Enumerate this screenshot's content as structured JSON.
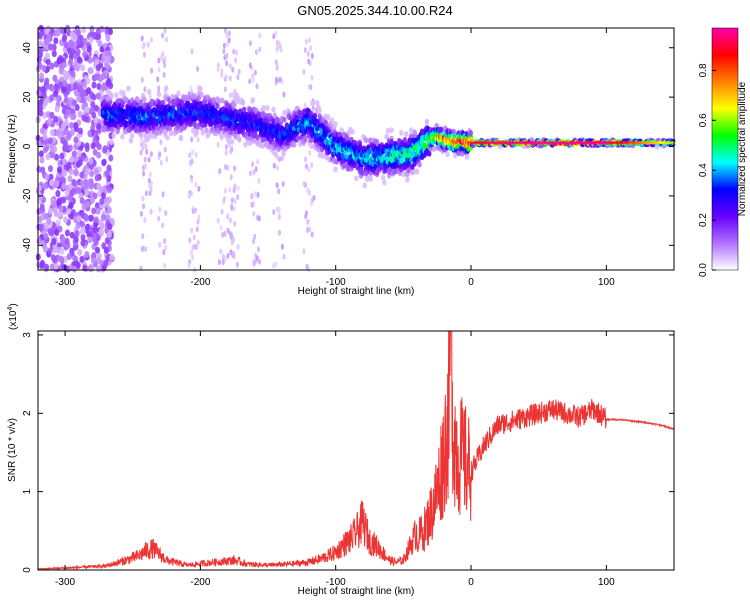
{
  "chart_data": [
    {
      "type": "heatmap",
      "title": "GN05.2025.344.10.00.R24",
      "xlabel": "Height of straight line (km)",
      "ylabel": "Frequency (Hz)",
      "xlim": [
        -320,
        150
      ],
      "ylim": [
        -50,
        48
      ],
      "xticks": [
        -300,
        -200,
        -100,
        0,
        100
      ],
      "xtick_labels": [
        "-300",
        "-200",
        "-100",
        "0",
        "100"
      ],
      "yticks": [
        -40,
        -20,
        0,
        20,
        40
      ],
      "ytick_labels": [
        "-40",
        "-20",
        "0",
        "20",
        "40"
      ],
      "colorbar": {
        "label": "Normalized spectral amplitude",
        "range": [
          0,
          0.97
        ],
        "ticks": [
          0.0,
          0.2,
          0.4,
          0.6,
          0.8
        ],
        "tick_labels": [
          "0.0",
          "0.2",
          "0.4",
          "0.6",
          "0.8"
        ],
        "colors": [
          "#ffffff",
          "#b070ff",
          "#6600ff",
          "#0000ff",
          "#00ffff",
          "#00ff00",
          "#ffff00",
          "#ff8000",
          "#ff0000",
          "#ff00aa"
        ]
      },
      "ridge": {
        "x": [
          -270,
          -240,
          -200,
          -160,
          -140,
          -120,
          -100,
          -80,
          -60,
          -45,
          -30,
          -25,
          -15,
          0,
          50,
          100,
          150
        ],
        "y": [
          13,
          12,
          14,
          9,
          5,
          10,
          0,
          -5,
          -4,
          -3,
          3,
          4,
          2,
          1.5,
          1.5,
          1.5,
          1.5
        ],
        "amplitude": [
          0.35,
          0.35,
          0.33,
          0.32,
          0.33,
          0.4,
          0.42,
          0.42,
          0.45,
          0.5,
          0.55,
          0.7,
          0.85,
          0.9,
          0.95,
          0.95,
          0.6
        ]
      },
      "grid": false
    },
    {
      "type": "line",
      "xlabel": "Height of straight line (km)",
      "ylabel": "SNR (10 * v/v)",
      "yscale_label": "(x10",
      "yscale_exponent": "4",
      "xlim": [
        -320,
        150
      ],
      "ylim": [
        0,
        3.05
      ],
      "xticks": [
        -300,
        -200,
        -100,
        0,
        100
      ],
      "xtick_labels": [
        "-300",
        "-200",
        "-100",
        "0",
        "100"
      ],
      "yticks": [
        0,
        1,
        2,
        3
      ],
      "ytick_labels": [
        "0",
        "1",
        "2",
        "3"
      ],
      "series": [
        {
          "color": "#ee3333",
          "x": [
            -320,
            -300,
            -270,
            -255,
            -245,
            -240,
            -235,
            -225,
            -210,
            -190,
            -175,
            -165,
            -150,
            -135,
            -120,
            -110,
            -100,
            -95,
            -90,
            -85,
            -80,
            -75,
            -70,
            -60,
            -55,
            -50,
            -45,
            -40,
            -35,
            -30,
            -25,
            -20,
            -17,
            -15,
            -13,
            -10,
            -5,
            0,
            10,
            20,
            30,
            40,
            50,
            60,
            70,
            80,
            85,
            90,
            95,
            100,
            110,
            120,
            130,
            140,
            150
          ],
          "y": [
            0.01,
            0.02,
            0.04,
            0.1,
            0.15,
            0.2,
            0.22,
            0.1,
            0.05,
            0.08,
            0.1,
            0.06,
            0.05,
            0.06,
            0.08,
            0.12,
            0.18,
            0.25,
            0.3,
            0.38,
            0.5,
            0.3,
            0.25,
            0.1,
            0.08,
            0.1,
            0.25,
            0.4,
            0.5,
            0.7,
            1.0,
            1.5,
            1.9,
            3.05,
            1.8,
            1.5,
            1.4,
            1.25,
            1.6,
            1.85,
            1.9,
            1.95,
            2.0,
            2.05,
            2.0,
            1.95,
            2.0,
            2.05,
            2.0,
            1.92,
            1.92,
            1.9,
            1.88,
            1.85,
            1.8
          ]
        }
      ],
      "grid": false
    }
  ]
}
